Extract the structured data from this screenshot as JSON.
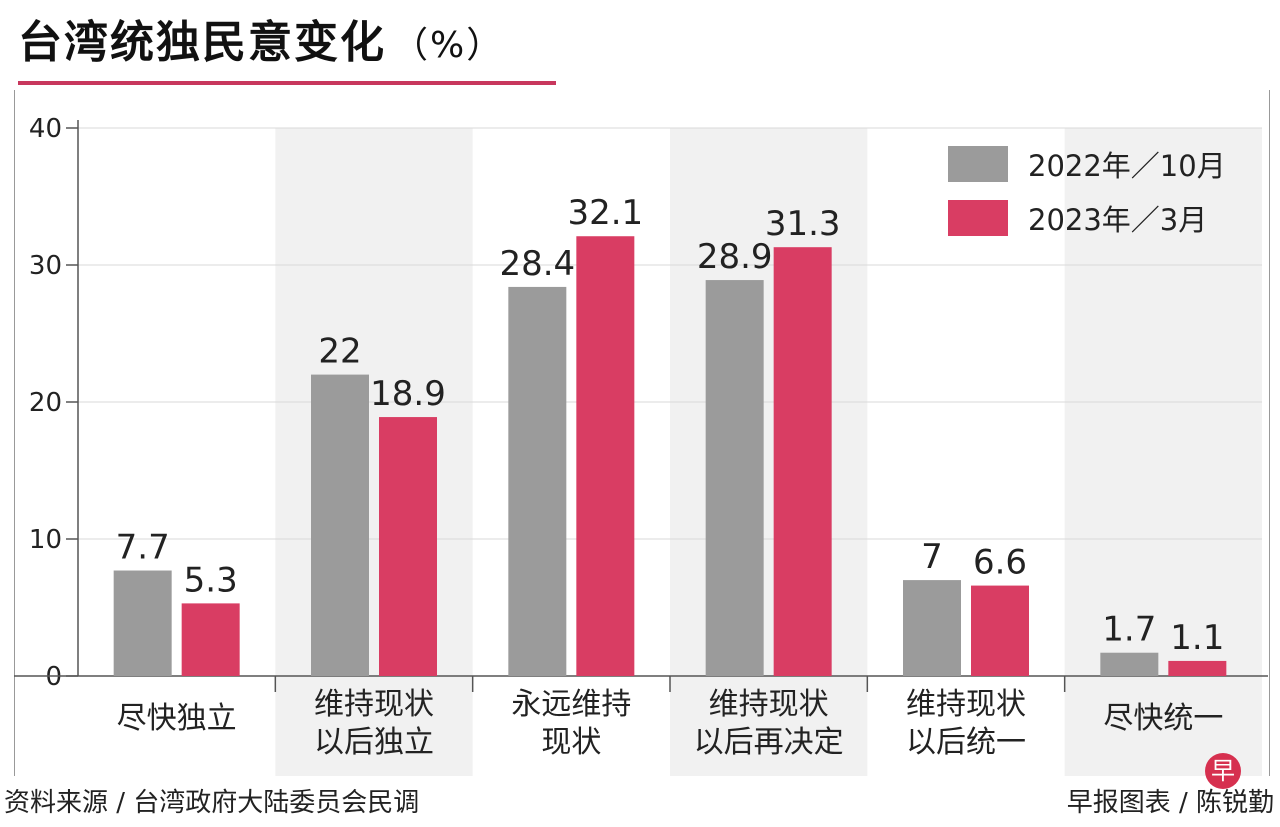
{
  "header": {
    "title": "台湾统独民意变化",
    "unit": "（%）"
  },
  "footer": {
    "source": "资料来源 / 台湾政府大陆委员会民调",
    "credit": "早报图表 / 陈锐勤",
    "logo_text": "早"
  },
  "colors": {
    "series_2022": "#9b9b9b",
    "series_2023": "#d93d63",
    "accent_rule": "#c8375d",
    "band": "#f1f1f1"
  },
  "chart_data": {
    "type": "bar",
    "title": "台湾统独民意变化（%）",
    "categories": [
      [
        "尽快独立"
      ],
      [
        "维持现状",
        "以后独立"
      ],
      [
        "永远维持",
        "现状"
      ],
      [
        "维持现状",
        "以后再决定"
      ],
      [
        "维持现状",
        "以后统一"
      ],
      [
        "尽快统一"
      ]
    ],
    "series": [
      {
        "name": "2022年／10月",
        "values": [
          7.7,
          22,
          28.4,
          28.9,
          7,
          1.7
        ],
        "labels": [
          "7.7",
          "22",
          "28.4",
          "28.9",
          "7",
          "1.7"
        ]
      },
      {
        "name": "2023年／3月",
        "values": [
          5.3,
          18.9,
          32.1,
          31.3,
          6.6,
          1.1
        ],
        "labels": [
          "5.3",
          "18.9",
          "32.1",
          "31.3",
          "6.6",
          "1.1"
        ]
      }
    ],
    "yticks": [
      "0",
      "10",
      "20",
      "30",
      "40"
    ],
    "ylim": [
      0,
      40
    ],
    "grid": true,
    "legend_position": "top-right"
  }
}
